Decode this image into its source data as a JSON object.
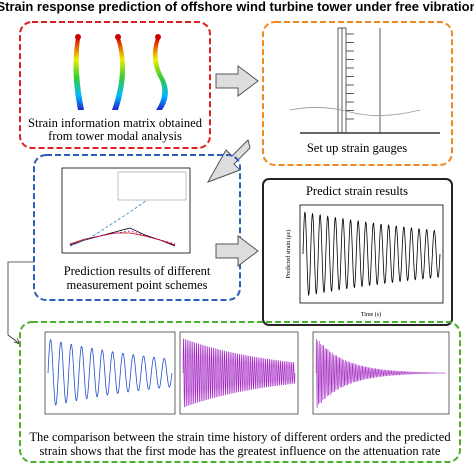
{
  "header": {
    "title": "Strain response prediction of offshore wind turbine tower under free vibration"
  },
  "panels": [
    {
      "caption": [
        "Strain information matrix obtained",
        "from tower modal analysis"
      ]
    },
    {
      "caption": [
        "Set up strain gauges"
      ]
    },
    {
      "caption": [
        "Prediction results of different",
        "measurement point schemes"
      ]
    },
    {
      "heading": "Predict strain results",
      "x_label": "Time (s)",
      "y_label": "Predicted strain (με)"
    },
    {
      "caption": [
        "The comparison between the strain time history of different orders and the predicted",
        "strain shows that the first mode has the greatest influence on the attenuation rate"
      ]
    }
  ]
}
